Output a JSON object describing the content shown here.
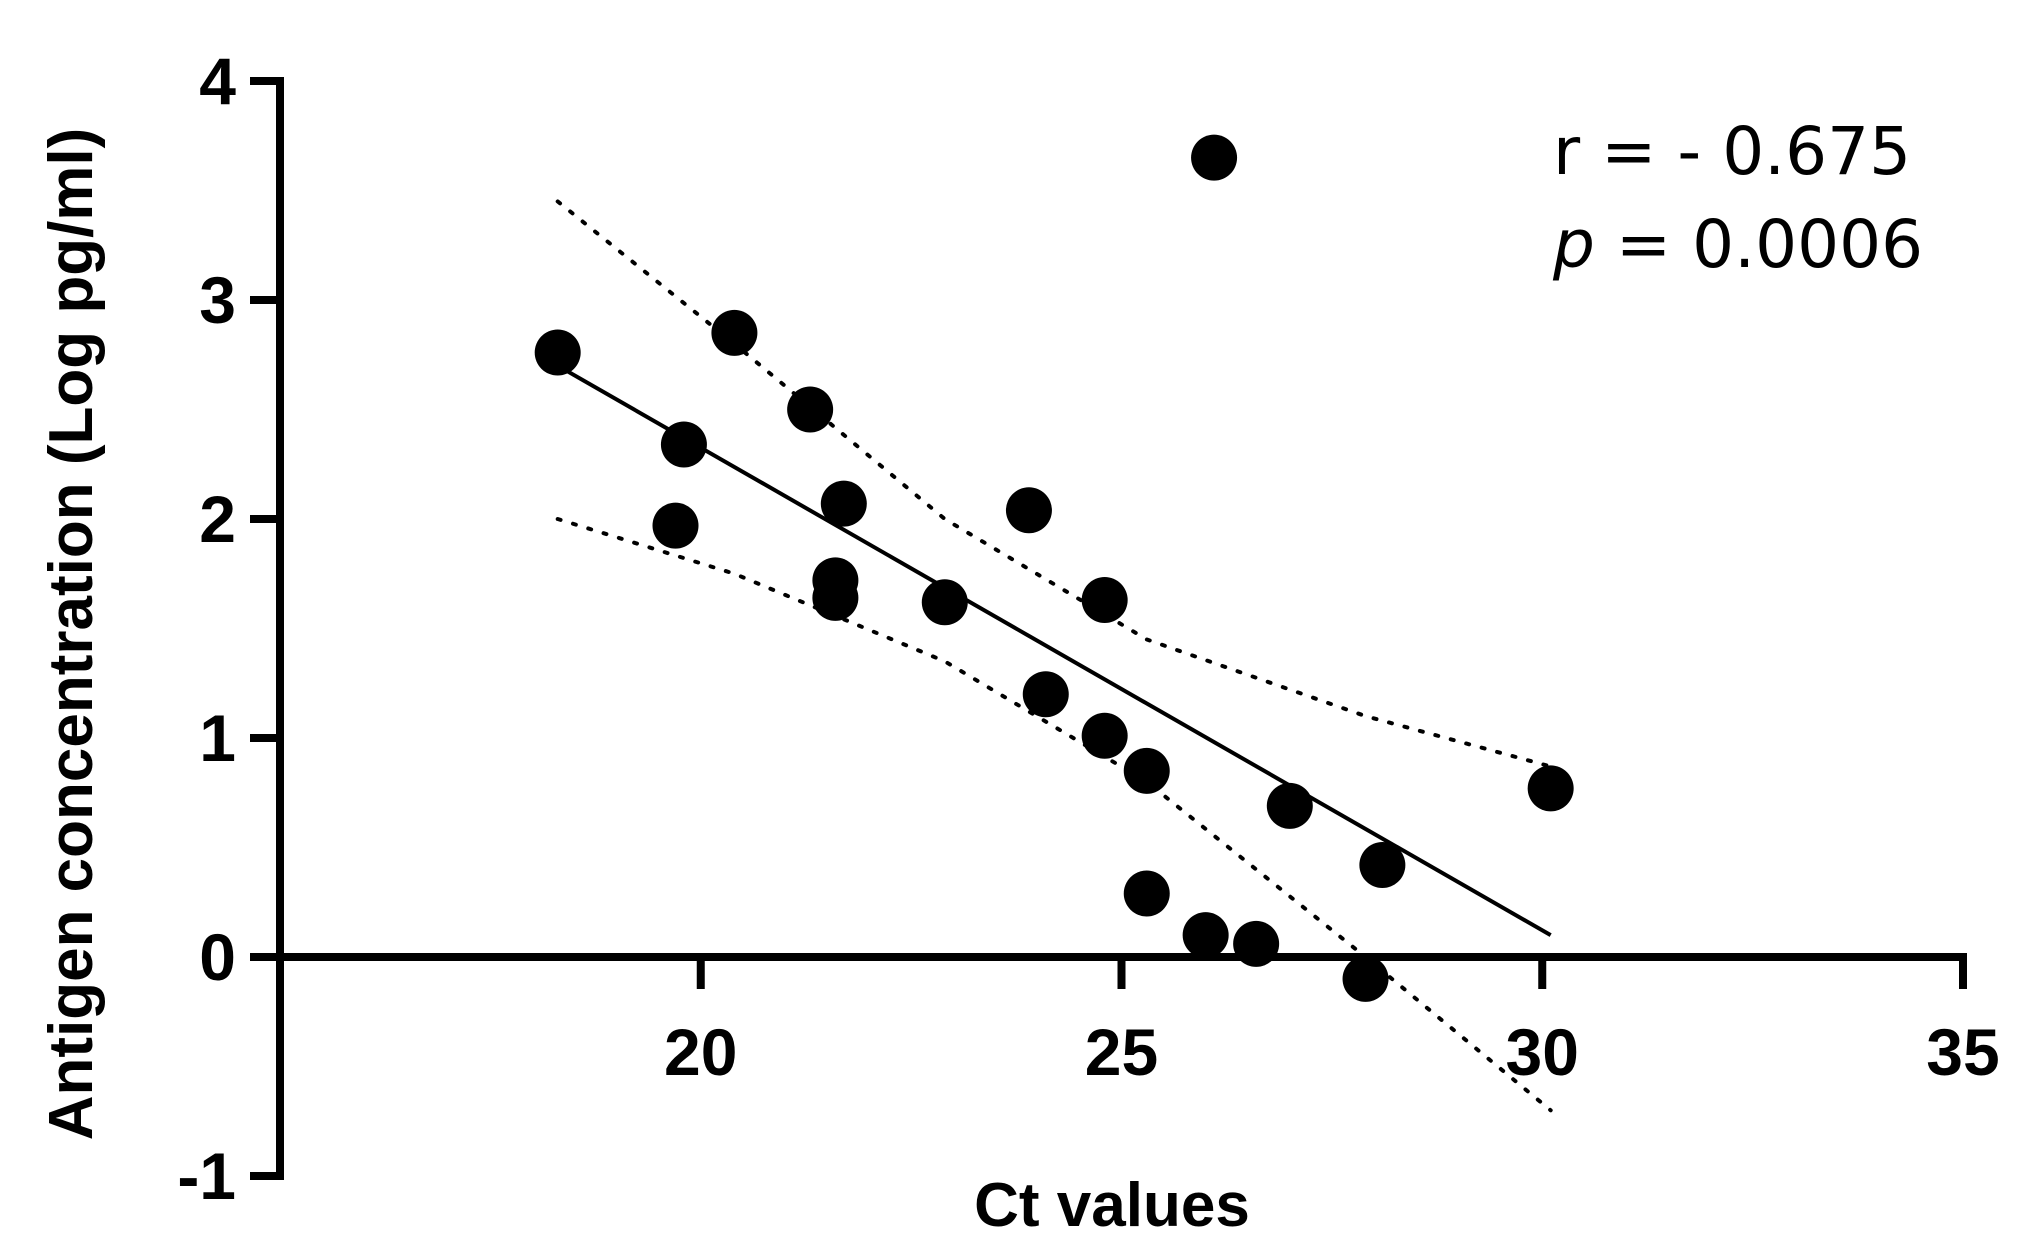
{
  "chart_data": {
    "type": "scatter",
    "xlabel": "Ct values",
    "ylabel": "Antigen concentration (Log pg/ml)",
    "xlim": [
      15,
      35
    ],
    "ylim": [
      -1,
      4
    ],
    "xticks": [
      20,
      25,
      30,
      35
    ],
    "yticks": [
      -1,
      0,
      1,
      2,
      3,
      4
    ],
    "x_tick_labels": [
      "20",
      "25",
      "30",
      "35"
    ],
    "y_tick_labels": [
      "-1",
      "0",
      "1",
      "2",
      "3",
      "4"
    ],
    "points": [
      {
        "x": 18.3,
        "y": 2.76
      },
      {
        "x": 19.8,
        "y": 2.34
      },
      {
        "x": 19.7,
        "y": 1.97
      },
      {
        "x": 20.4,
        "y": 2.85
      },
      {
        "x": 21.3,
        "y": 2.5
      },
      {
        "x": 21.7,
        "y": 2.07
      },
      {
        "x": 21.6,
        "y": 1.72
      },
      {
        "x": 21.6,
        "y": 1.64
      },
      {
        "x": 22.9,
        "y": 1.62
      },
      {
        "x": 23.9,
        "y": 2.04
      },
      {
        "x": 24.8,
        "y": 1.63
      },
      {
        "x": 24.1,
        "y": 1.2
      },
      {
        "x": 24.8,
        "y": 1.01
      },
      {
        "x": 25.3,
        "y": 0.85
      },
      {
        "x": 25.3,
        "y": 0.29
      },
      {
        "x": 26.1,
        "y": 3.65
      },
      {
        "x": 26.0,
        "y": 0.1
      },
      {
        "x": 26.6,
        "y": 0.06
      },
      {
        "x": 27.0,
        "y": 0.69
      },
      {
        "x": 28.1,
        "y": 0.42
      },
      {
        "x": 27.9,
        "y": -0.1
      },
      {
        "x": 30.1,
        "y": 0.77
      }
    ],
    "regression": {
      "x": [
        18.3,
        30.1
      ],
      "y": [
        2.7,
        0.1
      ]
    },
    "ci_upper": {
      "x": [
        18.3,
        20.4,
        22.9,
        25.3,
        27.9,
        30.1
      ],
      "y": [
        3.45,
        2.8,
        2.0,
        1.45,
        1.1,
        0.87
      ]
    },
    "ci_lower": {
      "x": [
        18.3,
        20.4,
        22.9,
        25.3,
        27.9,
        30.1
      ],
      "y": [
        2.0,
        1.75,
        1.35,
        0.8,
        0.0,
        -0.7
      ]
    },
    "annotations": {
      "r_text": "r = - 0.675",
      "p_symbol": "p",
      "p_rest": " = 0.0006"
    }
  }
}
